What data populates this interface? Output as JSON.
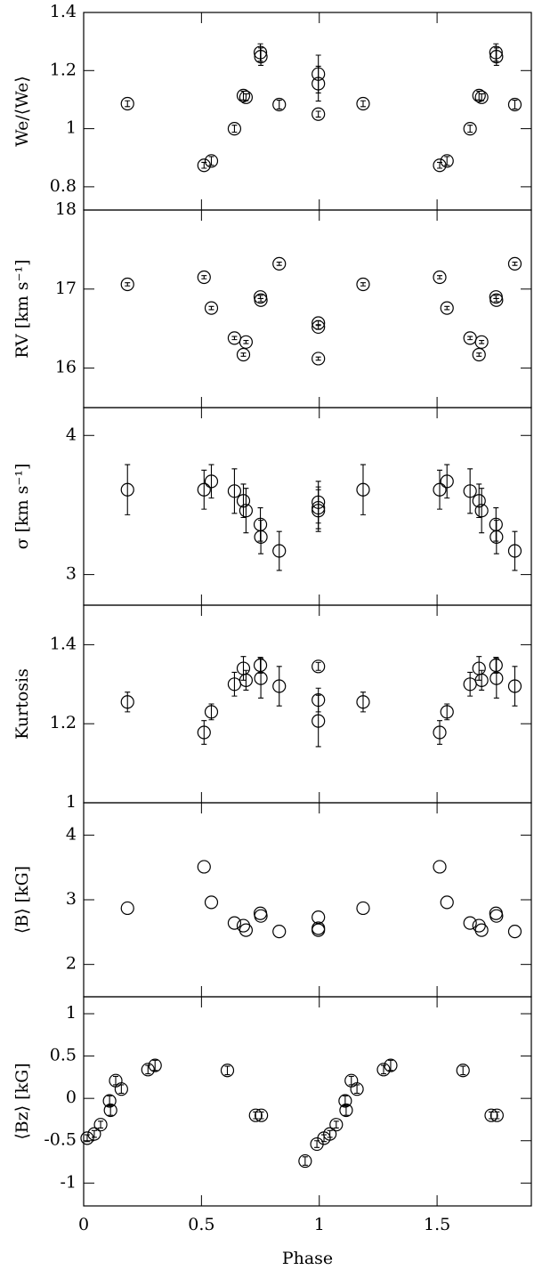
{
  "chart_data": [
    {
      "type": "scatter",
      "ylabel": "We/⟨We⟩",
      "color": "#000000",
      "xlim": [
        0,
        1.9
      ],
      "xticks": [
        0,
        0.5,
        1,
        1.5
      ],
      "ylim": [
        0.72,
        1.4
      ],
      "yticks": [
        0.8,
        1,
        1.2,
        1.4
      ],
      "x": [
        0.186,
        0.511,
        0.542,
        0.64,
        0.678,
        0.689,
        0.75,
        0.752,
        0.83,
        0.996,
        0.996,
        0.996,
        1.186,
        1.511,
        1.542,
        1.64,
        1.678,
        1.689,
        1.75,
        1.752,
        1.83
      ],
      "values": [
        1.086,
        0.874,
        0.889,
        1.0,
        1.114,
        1.108,
        1.262,
        1.248,
        1.083,
        1.188,
        1.155,
        1.05,
        1.086,
        0.874,
        0.889,
        1.0,
        1.114,
        1.108,
        1.262,
        1.248,
        1.083
      ],
      "errors": [
        0.01,
        0.01,
        0.015,
        0.012,
        0.015,
        0.012,
        0.03,
        0.03,
        0.015,
        0.065,
        0.06,
        0.01,
        0.01,
        0.01,
        0.015,
        0.012,
        0.015,
        0.012,
        0.03,
        0.03,
        0.015
      ]
    },
    {
      "type": "scatter",
      "ylabel": "RV [km s⁻¹]",
      "color": "#000000",
      "xlim": [
        0,
        1.9
      ],
      "xticks": [
        0,
        0.5,
        1,
        1.5
      ],
      "ylim": [
        15.5,
        18
      ],
      "yticks": [
        16,
        17,
        18
      ],
      "x": [
        0.186,
        0.511,
        0.542,
        0.64,
        0.678,
        0.689,
        0.75,
        0.752,
        0.83,
        0.996,
        0.996,
        0.996,
        1.186,
        1.511,
        1.542,
        1.64,
        1.678,
        1.689,
        1.75,
        1.752,
        1.83
      ],
      "values": [
        17.06,
        17.15,
        16.76,
        16.38,
        16.17,
        16.33,
        16.9,
        16.86,
        17.32,
        16.57,
        16.52,
        16.12,
        17.06,
        17.15,
        16.76,
        16.38,
        16.17,
        16.33,
        16.9,
        16.86,
        17.32
      ],
      "errors": [
        0.02,
        0.02,
        0.02,
        0.02,
        0.02,
        0.02,
        0.02,
        0.02,
        0.02,
        0.03,
        0.03,
        0.02,
        0.02,
        0.02,
        0.02,
        0.02,
        0.02,
        0.02,
        0.02,
        0.02,
        0.02
      ]
    },
    {
      "type": "scatter",
      "ylabel": "σ [km s⁻¹]",
      "color": "#000000",
      "xlim": [
        0,
        1.9
      ],
      "xticks": [
        0,
        0.5,
        1,
        1.5
      ],
      "ylim": [
        2.78,
        4.2
      ],
      "yticks": [
        3,
        4
      ],
      "x": [
        0.186,
        0.511,
        0.542,
        0.64,
        0.678,
        0.689,
        0.75,
        0.752,
        0.83,
        0.996,
        0.996,
        0.996,
        1.186,
        1.511,
        1.542,
        1.64,
        1.678,
        1.689,
        1.75,
        1.752,
        1.83
      ],
      "values": [
        3.61,
        3.61,
        3.67,
        3.6,
        3.53,
        3.46,
        3.36,
        3.27,
        3.17,
        3.52,
        3.48,
        3.46,
        3.61,
        3.61,
        3.67,
        3.6,
        3.53,
        3.46,
        3.36,
        3.27,
        3.17
      ],
      "errors": [
        0.18,
        0.14,
        0.12,
        0.16,
        0.12,
        0.16,
        0.12,
        0.12,
        0.14,
        0.15,
        0.15,
        0.15,
        0.18,
        0.14,
        0.12,
        0.16,
        0.12,
        0.16,
        0.12,
        0.12,
        0.14
      ]
    },
    {
      "type": "scatter",
      "ylabel": "Kurtosis",
      "color": "#000000",
      "xlim": [
        0,
        1.9
      ],
      "xticks": [
        0,
        0.5,
        1,
        1.5
      ],
      "ylim": [
        1,
        1.5
      ],
      "yticks": [
        1,
        1.2,
        1.4
      ],
      "x": [
        0.186,
        0.511,
        0.542,
        0.64,
        0.678,
        0.689,
        0.75,
        0.752,
        0.83,
        0.996,
        0.996,
        0.996,
        1.186,
        1.511,
        1.542,
        1.64,
        1.678,
        1.689,
        1.75,
        1.752,
        1.83
      ],
      "values": [
        1.255,
        1.178,
        1.23,
        1.3,
        1.34,
        1.31,
        1.348,
        1.315,
        1.295,
        1.345,
        1.26,
        1.207,
        1.255,
        1.178,
        1.23,
        1.3,
        1.34,
        1.31,
        1.348,
        1.315,
        1.295
      ],
      "errors": [
        0.025,
        0.03,
        0.02,
        0.03,
        0.03,
        0.025,
        0.02,
        0.05,
        0.05,
        0.01,
        0.03,
        0.065,
        0.025,
        0.03,
        0.02,
        0.03,
        0.03,
        0.025,
        0.02,
        0.05,
        0.05
      ]
    },
    {
      "type": "scatter",
      "ylabel": "⟨B⟩ [kG]",
      "color": "#000000",
      "xlim": [
        0,
        1.9
      ],
      "xticks": [
        0,
        0.5,
        1,
        1.5
      ],
      "ylim": [
        1.5,
        4.5
      ],
      "yticks": [
        2,
        3,
        4
      ],
      "x": [
        0.186,
        0.511,
        0.542,
        0.64,
        0.678,
        0.689,
        0.75,
        0.752,
        0.83,
        0.996,
        0.996,
        0.996,
        1.186,
        1.511,
        1.542,
        1.64,
        1.678,
        1.689,
        1.75,
        1.752,
        1.83
      ],
      "values": [
        2.87,
        3.51,
        2.96,
        2.64,
        2.6,
        2.53,
        2.79,
        2.75,
        2.51,
        2.73,
        2.56,
        2.53,
        2.87,
        3.51,
        2.96,
        2.64,
        2.6,
        2.53,
        2.79,
        2.75,
        2.51
      ]
    },
    {
      "type": "scatter",
      "ylabel": "⟨Bz⟩ [kG]",
      "xlabel": "Phase",
      "color": "#000000",
      "xlim": [
        0,
        1.9
      ],
      "xticks": [
        0,
        0.5,
        1,
        1.5
      ],
      "ylim": [
        -1.27,
        1.2
      ],
      "yticks": [
        -1,
        -0.5,
        0,
        0.5,
        1
      ],
      "x": [
        0.015,
        0.045,
        0.072,
        0.11,
        0.114,
        0.136,
        0.16,
        0.273,
        0.303,
        0.61,
        0.73,
        0.754,
        0.94,
        0.99,
        1.02,
        1.045,
        1.072,
        1.11,
        1.114,
        1.136,
        1.16,
        1.273,
        1.303,
        1.61,
        1.73,
        1.754
      ],
      "values": [
        -0.47,
        -0.42,
        -0.31,
        -0.03,
        -0.14,
        0.21,
        0.11,
        0.34,
        0.39,
        0.33,
        -0.2,
        -0.2,
        -0.74,
        -0.54,
        -0.47,
        -0.42,
        -0.31,
        -0.03,
        -0.14,
        0.21,
        0.11,
        0.34,
        0.39,
        0.33,
        -0.2,
        -0.2
      ],
      "errors": [
        0.04,
        0.04,
        0.04,
        0.06,
        0.06,
        0.05,
        0.05,
        0.05,
        0.06,
        0.05,
        0.04,
        0.04,
        0.05,
        0.04,
        0.04,
        0.04,
        0.04,
        0.06,
        0.06,
        0.05,
        0.05,
        0.05,
        0.06,
        0.05,
        0.04,
        0.04
      ]
    }
  ]
}
